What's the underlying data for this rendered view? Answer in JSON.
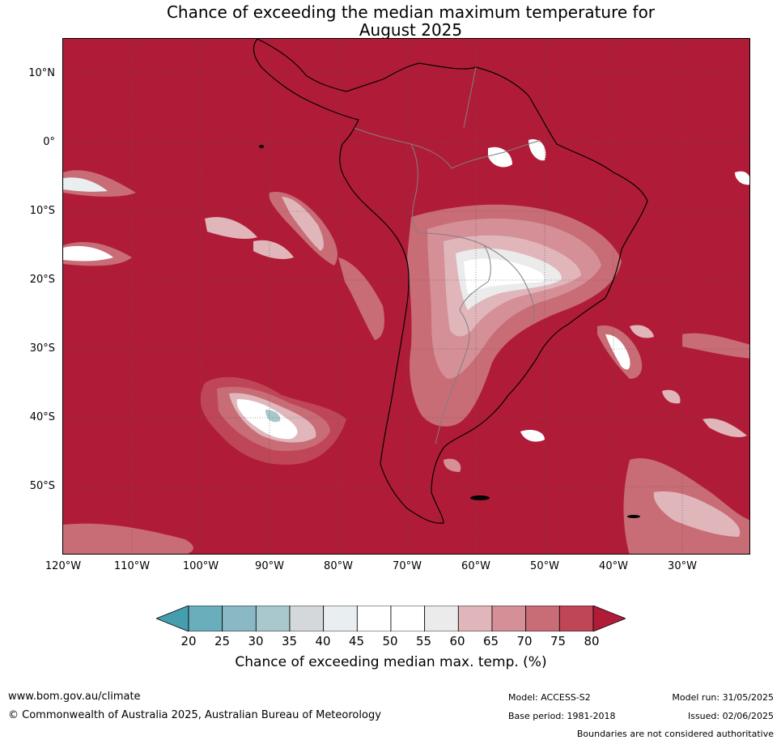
{
  "title": {
    "line1": "Chance of exceeding the median maximum temperature for",
    "line2": "August 2025"
  },
  "map": {
    "lat_labels": [
      "10°N",
      "0°",
      "10°S",
      "20°S",
      "30°S",
      "40°S",
      "50°S"
    ],
    "lon_labels": [
      "120°W",
      "110°W",
      "100°W",
      "90°W",
      "80°W",
      "70°W",
      "60°W",
      "50°W",
      "40°W",
      "30°W"
    ],
    "colors": {
      "ocean_high": "#b01c37",
      "land_border": "#000000",
      "country_border": "#808080",
      "grid": "#555555"
    }
  },
  "colorbar": {
    "tick_labels": [
      "20",
      "25",
      "30",
      "35",
      "40",
      "45",
      "50",
      "55",
      "60",
      "65",
      "70",
      "75",
      "80"
    ],
    "colors": [
      "#459ead",
      "#6aaebc",
      "#8ab8c4",
      "#a8c8cd",
      "#d4d8db",
      "#e9eff1",
      "#ffffff",
      "#ffffff",
      "#ebebeb",
      "#e0b6bb",
      "#d48f97",
      "#c86c76",
      "#bf4656",
      "#b01c37"
    ],
    "label": "Chance of exceeding median max. temp. (%)"
  },
  "footer": {
    "url": "www.bom.gov.au/climate",
    "copyright": "© Commonwealth of Australia 2025, Australian Bureau of Meteorology",
    "model": "Model: ACCESS-S2",
    "base_period": "Base period: 1981-2018",
    "model_run": "Model run: 31/05/2025",
    "issued": "Issued: 02/06/2025",
    "disclaimer": "Boundaries are not considered authoritative"
  }
}
